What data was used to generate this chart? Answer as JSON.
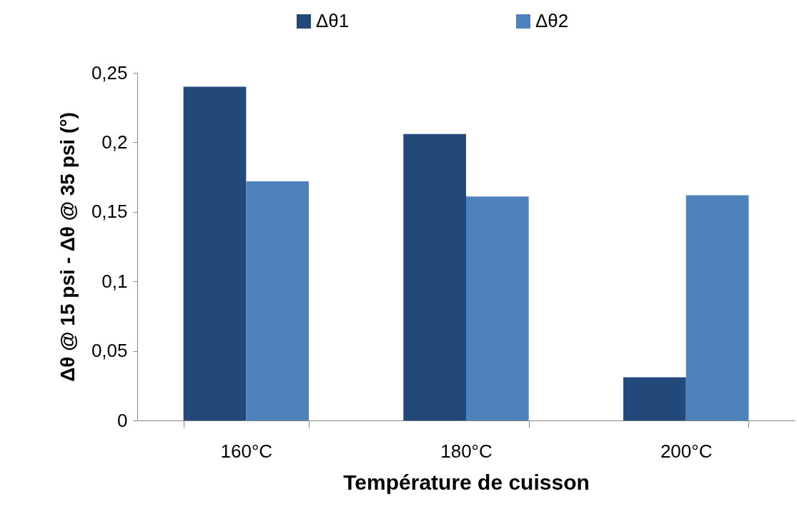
{
  "chart_data": {
    "type": "bar",
    "xlabel": "Température de cuisson",
    "ylabel": "Δθ @ 15 psi - Δθ @ 35 psi (°)",
    "categories": [
      "160°C",
      "180°C",
      "200°C"
    ],
    "series": [
      {
        "name": "Δθ1",
        "color": "#22497a",
        "values": [
          0.24,
          0.206,
          0.031
        ]
      },
      {
        "name": "Δθ2",
        "color": "#4f81bd",
        "values": [
          0.172,
          0.161,
          0.162
        ]
      }
    ],
    "ylim": [
      0,
      0.25
    ],
    "yticks": [
      {
        "value": 0,
        "label": "0"
      },
      {
        "value": 0.05,
        "label": "0,05"
      },
      {
        "value": 0.1,
        "label": "0,1"
      },
      {
        "value": 0.15,
        "label": "0,15"
      },
      {
        "value": 0.2,
        "label": "0,2"
      },
      {
        "value": 0.25,
        "label": "0,25"
      }
    ],
    "grid": false,
    "legend": "top"
  }
}
